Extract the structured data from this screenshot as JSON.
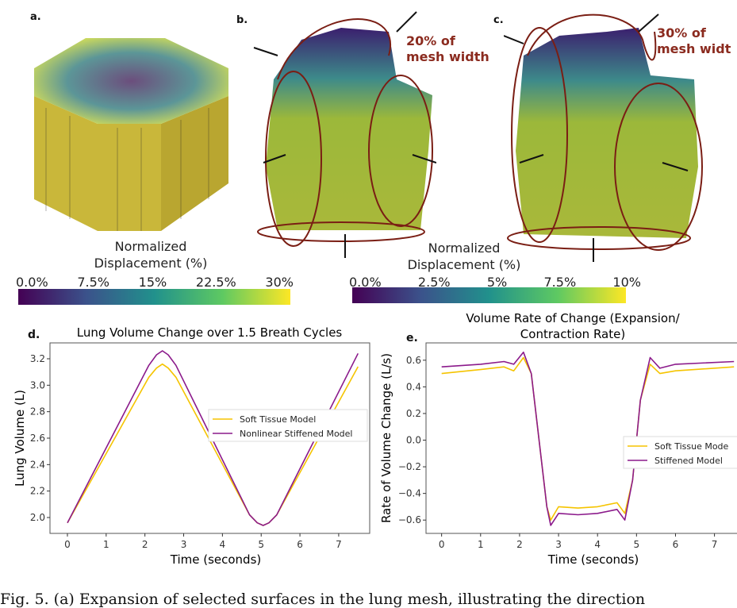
{
  "panels": {
    "a": {
      "label": "a.",
      "colorbar": {
        "title_line1": "Normalized",
        "title_line2": "Displacement (%)",
        "ticks": [
          "0.0%",
          "7.5%",
          "15%",
          "22.5%",
          "30%"
        ]
      }
    },
    "b": {
      "label": "b.",
      "annotation_line1": "20% of",
      "annotation_line2": "mesh width"
    },
    "c": {
      "label": "c.",
      "annotation_line1": "30% of",
      "annotation_line2": "mesh widt",
      "colorbar": {
        "title_line1": "Normalized",
        "title_line2": "Displacement (%)",
        "ticks": [
          "0.0%",
          "2.5%",
          "5%",
          "7.5%",
          "10%"
        ]
      }
    },
    "d": {
      "label": "d."
    },
    "e": {
      "label": "e."
    }
  },
  "colors": {
    "soft": "#f5c400",
    "stiff": "#8b1a8b",
    "annotation": "#8b2b1f"
  },
  "chart_data": [
    {
      "type": "line",
      "title": "Lung Volume Change over 1.5 Breath Cycles",
      "xlabel": "Time (seconds)",
      "ylabel": "Lung Volume (L)",
      "xlim": [
        -0.45,
        7.8
      ],
      "ylim": [
        1.88,
        3.32
      ],
      "xticks": [
        "0",
        "1",
        "2",
        "3",
        "4",
        "5",
        "6",
        "7"
      ],
      "yticks": [
        "2.0",
        "2.2",
        "2.4",
        "2.6",
        "2.8",
        "3.0",
        "3.2"
      ],
      "legend": "center-right",
      "series": [
        {
          "name": "Soft Tissue Model",
          "x": [
            0,
            2.1,
            2.3,
            2.45,
            2.6,
            2.8,
            4.7,
            4.9,
            5.05,
            5.2,
            5.4,
            7.5
          ],
          "y": [
            1.96,
            3.06,
            3.13,
            3.16,
            3.13,
            3.06,
            2.02,
            1.96,
            1.94,
            1.96,
            2.02,
            3.14
          ]
        },
        {
          "name": "Nonlinear Stiffened Model",
          "x": [
            0,
            2.1,
            2.3,
            2.45,
            2.6,
            2.8,
            4.7,
            4.9,
            5.05,
            5.2,
            5.4,
            7.5
          ],
          "y": [
            1.96,
            3.15,
            3.23,
            3.26,
            3.23,
            3.15,
            2.02,
            1.96,
            1.94,
            1.96,
            2.02,
            3.24
          ]
        }
      ]
    },
    {
      "type": "line",
      "title_line1": "Volume Rate of Change (Expansion/",
      "title_line2": "Contraction Rate)",
      "xlabel": "Time (seconds)",
      "ylabel": "Rate of Volume Change (L/s)",
      "xlim": [
        -0.4,
        7.7
      ],
      "ylim": [
        -0.7,
        0.73
      ],
      "xticks": [
        "0",
        "1",
        "2",
        "3",
        "4",
        "5",
        "6",
        "7"
      ],
      "yticks": [
        "0.6",
        "0.4",
        "0.2",
        "0.0",
        "−0.2",
        "−0.4",
        "−0.6"
      ],
      "legend": "center-right",
      "series": [
        {
          "name": "Soft Tissue Mode",
          "x": [
            0,
            1,
            1.6,
            1.85,
            2.1,
            2.3,
            2.5,
            2.7,
            2.8,
            3,
            3.5,
            4,
            4.5,
            4.7,
            4.9,
            5.1,
            5.35,
            5.6,
            6,
            7.5
          ],
          "y": [
            0.5,
            0.53,
            0.55,
            0.52,
            0.62,
            0.5,
            0,
            -0.5,
            -0.6,
            -0.5,
            -0.51,
            -0.5,
            -0.47,
            -0.55,
            -0.3,
            0.3,
            0.57,
            0.5,
            0.52,
            0.55
          ]
        },
        {
          "name": "Stiffened Model",
          "x": [
            0,
            1,
            1.6,
            1.85,
            2.1,
            2.3,
            2.5,
            2.7,
            2.8,
            3,
            3.5,
            4,
            4.5,
            4.7,
            4.9,
            5.1,
            5.35,
            5.6,
            6,
            7.5
          ],
          "y": [
            0.55,
            0.57,
            0.59,
            0.57,
            0.66,
            0.5,
            0,
            -0.5,
            -0.64,
            -0.55,
            -0.56,
            -0.55,
            -0.52,
            -0.6,
            -0.3,
            0.3,
            0.62,
            0.54,
            0.57,
            0.59
          ]
        }
      ]
    }
  ],
  "caption": "Fig. 5. (a) Expansion of selected surfaces in the lung mesh, illustrating the direction"
}
